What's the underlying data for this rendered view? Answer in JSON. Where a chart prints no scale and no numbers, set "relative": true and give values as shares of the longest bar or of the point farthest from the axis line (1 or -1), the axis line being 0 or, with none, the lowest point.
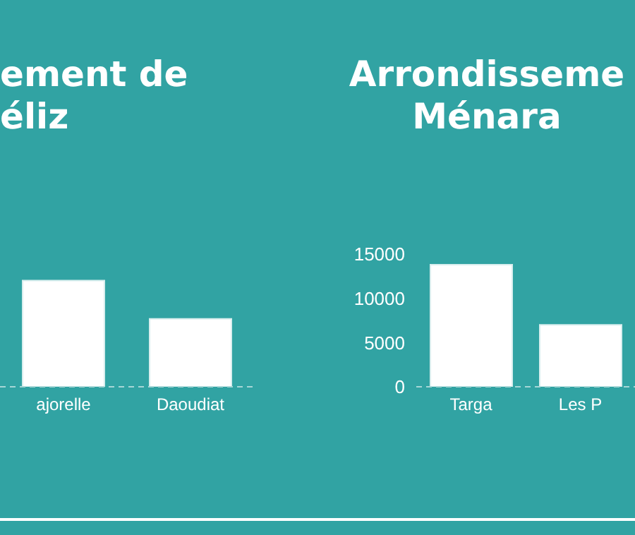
{
  "chart_data": [
    {
      "type": "bar",
      "title": "ement de\néliz",
      "categories": [
        "ajorelle",
        "Daoudiat"
      ],
      "values": [
        1,
        0.64
      ],
      "color": "#ffffff",
      "relative": true
    },
    {
      "type": "bar",
      "title": "Arrondisseme\nMénara",
      "categories": [
        "Targa",
        "Les P"
      ],
      "values": [
        13800,
        7000
      ],
      "color": "#ffffff",
      "ylim": [
        0,
        15000
      ],
      "yticks": [
        0,
        5000,
        10000,
        15000
      ]
    }
  ]
}
